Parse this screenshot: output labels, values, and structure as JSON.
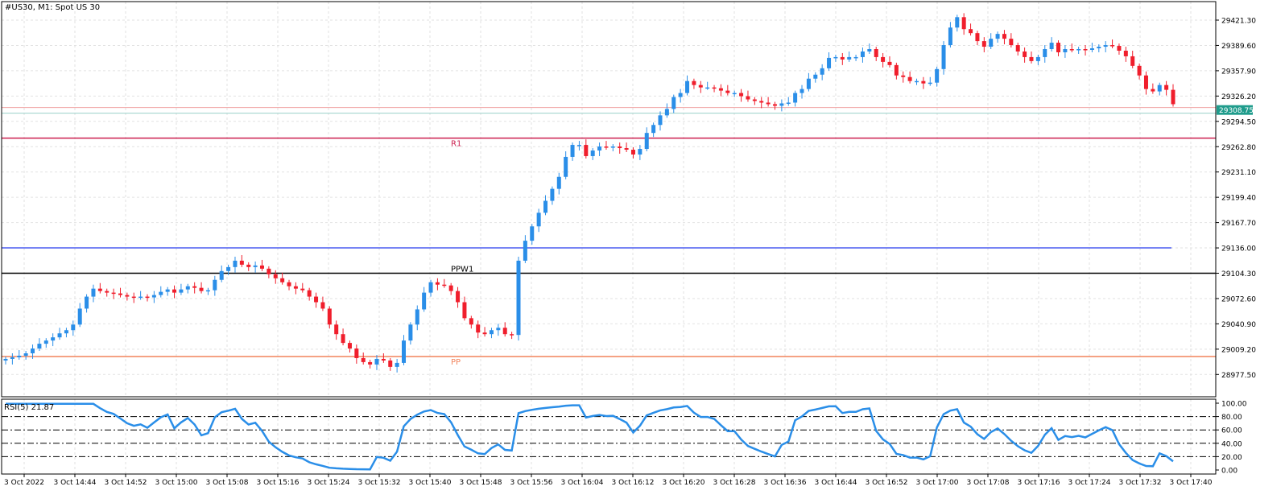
{
  "window": {
    "title": "#US30, M1:  Spot US 30",
    "symbol": "#US30",
    "timeframe": "M1"
  },
  "colors": {
    "bull": "#2a8ee8",
    "bear": "#f01e2c",
    "grid": "#e2e2e2",
    "r1": "#cc1f4f",
    "pp": "#f2845c",
    "ppw1": "#000000",
    "level_blue": "#4a5cf0",
    "rsi_line": "#2a8ee8",
    "price_tag": "#1f9c8c"
  },
  "price_panel": {
    "y_ticks": [
      "29421.30",
      "29389.60",
      "29357.90",
      "29326.20",
      "29294.50",
      "29262.80",
      "29231.10",
      "29199.40",
      "29167.70",
      "29136.00",
      "29104.30",
      "29072.60",
      "29040.90",
      "29009.20",
      "28977.50"
    ],
    "current_price": "29308.75",
    "levels": [
      {
        "label": "R1",
        "price": 29273.5,
        "color": "#cc1f4f"
      },
      {
        "label": "",
        "price": 29136.0,
        "color": "#4a5cf0"
      },
      {
        "label": "PPW1",
        "price": 29104.3,
        "color": "#000000"
      },
      {
        "label": "PP",
        "price": 29000.0,
        "color": "#f2845c"
      }
    ]
  },
  "rsi_panel": {
    "label": "RSI(5) 21.87",
    "y_ticks": [
      "100.00",
      "80.00",
      "60.00",
      "40.00",
      "20.00",
      "0.00"
    ],
    "levels": [
      80,
      60,
      40,
      20
    ]
  },
  "time_axis": {
    "labels": [
      "3 Oct 2022",
      "3 Oct 14:44",
      "3 Oct 14:52",
      "3 Oct 15:00",
      "3 Oct 15:08",
      "3 Oct 15:16",
      "3 Oct 15:24",
      "3 Oct 15:32",
      "3 Oct 15:40",
      "3 Oct 15:48",
      "3 Oct 15:56",
      "3 Oct 16:04",
      "3 Oct 16:12",
      "3 Oct 16:20",
      "3 Oct 16:28",
      "3 Oct 16:36",
      "3 Oct 16:44",
      "3 Oct 16:52",
      "3 Oct 17:00",
      "3 Oct 17:08",
      "3 Oct 17:16",
      "3 Oct 17:24",
      "3 Oct 17:32",
      "3 Oct 17:40"
    ]
  },
  "chart_data": {
    "type": "candlestick",
    "title": "#US30, M1:  Spot US 30",
    "ylim": [
      28958,
      29436
    ],
    "close": [
      28997,
      28999,
      29001,
      29004,
      29010,
      29016,
      29020,
      29024,
      29029,
      29033,
      29040,
      29060,
      29075,
      29085,
      29082,
      29080,
      29079,
      29077,
      29075,
      29074,
      29075,
      29074,
      29077,
      29081,
      29084,
      29080,
      29084,
      29088,
      29086,
      29082,
      29083,
      29096,
      29107,
      29112,
      29120,
      29115,
      29112,
      29114,
      29110,
      29103,
      29098,
      29093,
      29088,
      29085,
      29083,
      29075,
      29068,
      29060,
      29040,
      29028,
      29017,
      29010,
      28998,
      28993,
      28990,
      28997,
      28995,
      28987,
      28992,
      29020,
      29040,
      29059,
      29080,
      29093,
      29090,
      29089,
      29082,
      29068,
      29048,
      29040,
      29030,
      29028,
      29033,
      29036,
      29028,
      29027,
      29120,
      29145,
      29163,
      29180,
      29195,
      29210,
      29225,
      29250,
      29265,
      29265,
      29251,
      29258,
      29263,
      29262,
      29263,
      29261,
      29259,
      29253,
      29260,
      29280,
      29290,
      29302,
      29310,
      29325,
      29330,
      29345,
      29340,
      29337,
      29337,
      29336,
      29333,
      29330,
      29330,
      29326,
      29322,
      29320,
      29318,
      29316,
      29314,
      29317,
      29318,
      29330,
      29335,
      29348,
      29353,
      29361,
      29374,
      29375,
      29372,
      29375,
      29375,
      29382,
      29385,
      29375,
      29369,
      29365,
      29352,
      29350,
      29345,
      29345,
      29342,
      29343,
      29360,
      29390,
      29412,
      29425,
      29410,
      29405,
      29395,
      29388,
      29398,
      29404,
      29398,
      29390,
      29382,
      29375,
      29370,
      29375,
      29385,
      29393,
      29381,
      29385,
      29384,
      29385,
      29384,
      29386,
      29388,
      29390,
      29389,
      29383,
      29376,
      29364,
      29352,
      29335,
      29332,
      29340,
      29334,
      29316
    ]
  }
}
